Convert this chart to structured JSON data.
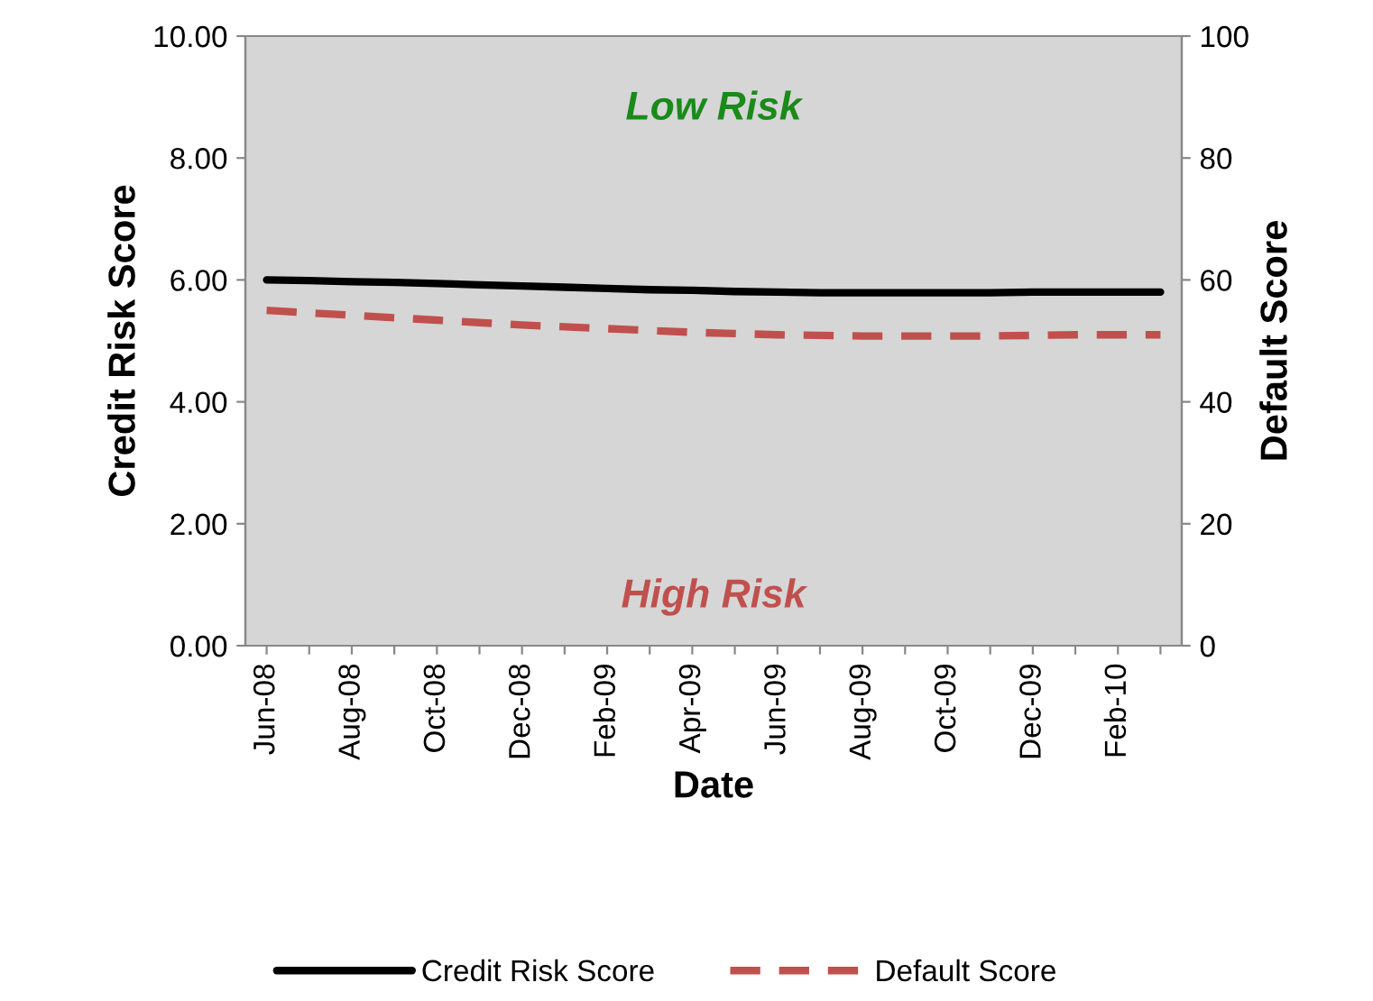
{
  "chart_data": {
    "type": "line",
    "xlabel": "Date",
    "ylabel": "Credit Risk Score",
    "y2label": "Default Score",
    "categories": [
      "Jun-08",
      null,
      "Aug-08",
      null,
      "Oct-08",
      null,
      "Dec-08",
      null,
      "Feb-09",
      null,
      "Apr-09",
      null,
      "Jun-09",
      null,
      "Aug-09",
      null,
      "Oct-09",
      null,
      "Dec-09",
      null,
      "Feb-10",
      null
    ],
    "series": [
      {
        "name": "Credit Risk Score",
        "color": "#000000",
        "line_style": "solid",
        "values": [
          6.0,
          5.99,
          5.97,
          5.96,
          5.94,
          5.92,
          5.9,
          5.88,
          5.86,
          5.84,
          5.83,
          5.81,
          5.8,
          5.79,
          5.79,
          5.79,
          5.79,
          5.79,
          5.8,
          5.8,
          5.8,
          5.8
        ]
      },
      {
        "name": "Default Score",
        "color": "#c0504d",
        "line_style": "dashed",
        "axis": "y2",
        "values": [
          55.0,
          54.6,
          54.2,
          53.8,
          53.4,
          53.0,
          52.6,
          52.3,
          52.0,
          51.7,
          51.4,
          51.2,
          51.0,
          50.9,
          50.8,
          50.8,
          50.8,
          50.8,
          50.9,
          51.0,
          51.0,
          51.0
        ]
      }
    ],
    "ylim": [
      0,
      10
    ],
    "yticks": [
      {
        "value": 0,
        "label": "0.00"
      },
      {
        "value": 2,
        "label": "2.00"
      },
      {
        "value": 4,
        "label": "4.00"
      },
      {
        "value": 6,
        "label": "6.00"
      },
      {
        "value": 8,
        "label": "8.00"
      },
      {
        "value": 10,
        "label": "10.00"
      }
    ],
    "y2lim": [
      0,
      100
    ],
    "y2ticks": [
      0,
      20,
      40,
      60,
      80,
      100
    ],
    "annotations": [
      "Low Risk",
      "High Risk"
    ],
    "grid": false,
    "legend": "bottom"
  }
}
